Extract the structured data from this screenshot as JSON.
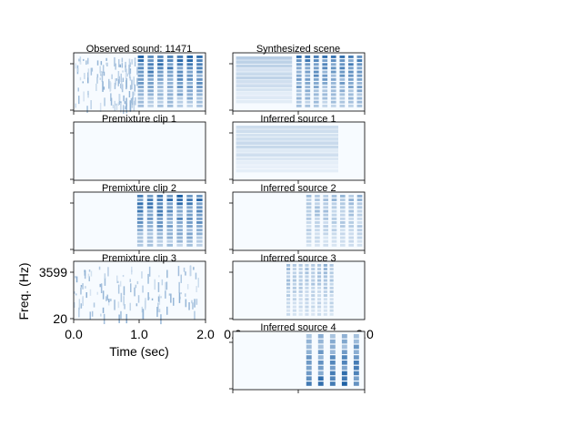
{
  "chart_data": {
    "type": "heatmap",
    "colormap": "Blues",
    "background_color": "#f7fbff",
    "dark_color": "#08519c",
    "axis_labels": {
      "xlabel": "Time (sec)",
      "ylabel": "Freq. (Hz)"
    },
    "x_ticks": [
      "0.0",
      "1.0",
      "2.0"
    ],
    "y_ticks": [
      "3599",
      "20"
    ],
    "x_range_sec": [
      0,
      2
    ],
    "y_range_hz": [
      20,
      3599
    ],
    "panels": [
      {
        "id": "observed",
        "title": "Observed sound: 11471",
        "segments": [
          {
            "kind": "noise",
            "start": 0.02,
            "end": 0.96,
            "intensity": 0.45
          },
          {
            "kind": "harmonic",
            "start": 0.96,
            "end": 2.0,
            "intensity": 0.95,
            "pulses": 7
          }
        ]
      },
      {
        "id": "synth",
        "title": "Synthesized scene",
        "segments": [
          {
            "kind": "smooth",
            "start": 0.05,
            "end": 0.9,
            "intensity": 0.35
          },
          {
            "kind": "harmonic",
            "start": 0.95,
            "end": 2.0,
            "intensity": 0.85,
            "pulses": 8
          }
        ]
      },
      {
        "id": "pre1",
        "title": "Premixture clip 1",
        "segments": []
      },
      {
        "id": "inf1",
        "title": "Inferred source 1",
        "segments": [
          {
            "kind": "smooth",
            "start": 0.05,
            "end": 1.6,
            "intensity": 0.3
          }
        ]
      },
      {
        "id": "pre2",
        "title": "Premixture clip 2",
        "segments": [
          {
            "kind": "harmonic",
            "start": 0.95,
            "end": 2.0,
            "intensity": 0.95,
            "pulses": 7
          }
        ]
      },
      {
        "id": "inf2",
        "title": "Inferred source 2",
        "segments": [
          {
            "kind": "harmonic",
            "start": 1.1,
            "end": 2.0,
            "intensity": 0.45,
            "pulses": 7
          }
        ]
      },
      {
        "id": "pre3",
        "title": "Premixture clip 3",
        "segments": [
          {
            "kind": "noise",
            "start": 0.0,
            "end": 1.9,
            "intensity": 0.45
          }
        ]
      },
      {
        "id": "inf3",
        "title": "Inferred source 3",
        "segments": [
          {
            "kind": "harmonic",
            "start": 0.8,
            "end": 1.55,
            "intensity": 0.45,
            "pulses": 8
          }
        ]
      },
      {
        "id": "inf4",
        "title": "Inferred source 4",
        "segments": [
          {
            "kind": "pulse",
            "start": 1.1,
            "end": 2.0,
            "intensity": 1.0,
            "pulses": 5
          }
        ]
      }
    ]
  }
}
